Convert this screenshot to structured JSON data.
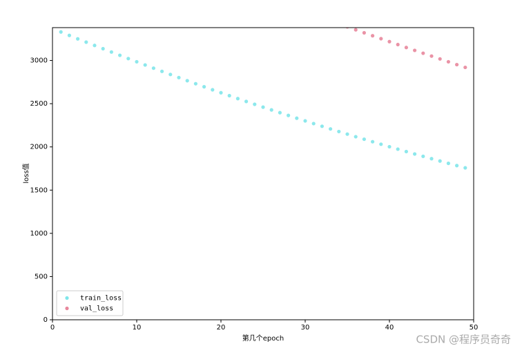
{
  "chart_data": {
    "type": "scatter",
    "xlabel": "第几个epoch",
    "ylabel": "loss值",
    "xlim": [
      0,
      50
    ],
    "ylim": [
      0,
      3380
    ],
    "xticks": [
      0,
      10,
      20,
      30,
      40,
      50
    ],
    "yticks": [
      0,
      500,
      1000,
      1500,
      2000,
      2500,
      3000
    ],
    "grid": false,
    "legend": "lower left",
    "watermark": "CSDN @程序员奇奇",
    "series": [
      {
        "name": "train_loss",
        "color": "#7fe6ea",
        "x": [
          1,
          2,
          3,
          4,
          5,
          6,
          7,
          8,
          9,
          10,
          11,
          12,
          13,
          14,
          15,
          16,
          17,
          18,
          19,
          20,
          21,
          22,
          23,
          24,
          25,
          26,
          27,
          28,
          29,
          30,
          31,
          32,
          33,
          34,
          35,
          36,
          37,
          38,
          39,
          40,
          41,
          42,
          43,
          44,
          45,
          46,
          47,
          48,
          49
        ],
        "values": [
          3330,
          3290,
          3250,
          3212,
          3174,
          3136,
          3098,
          3060,
          3022,
          2985,
          2948,
          2911,
          2874,
          2838,
          2802,
          2766,
          2731,
          2696,
          2661,
          2627,
          2593,
          2559,
          2526,
          2493,
          2460,
          2428,
          2396,
          2364,
          2332,
          2301,
          2270,
          2239,
          2208,
          2178,
          2148,
          2118,
          2089,
          2060,
          2031,
          2002,
          1974,
          1946,
          1918,
          1891,
          1864,
          1837,
          1810,
          1784,
          1758
        ]
      },
      {
        "name": "val_loss",
        "color": "#e8879c",
        "x": [
          35,
          36,
          37,
          38,
          39,
          40,
          41,
          42,
          43,
          44,
          45,
          46,
          47,
          48,
          49
        ],
        "values": [
          3390,
          3355,
          3320,
          3286,
          3252,
          3218,
          3184,
          3150,
          3117,
          3084,
          3051,
          3018,
          2985,
          2952,
          2920
        ]
      }
    ]
  }
}
